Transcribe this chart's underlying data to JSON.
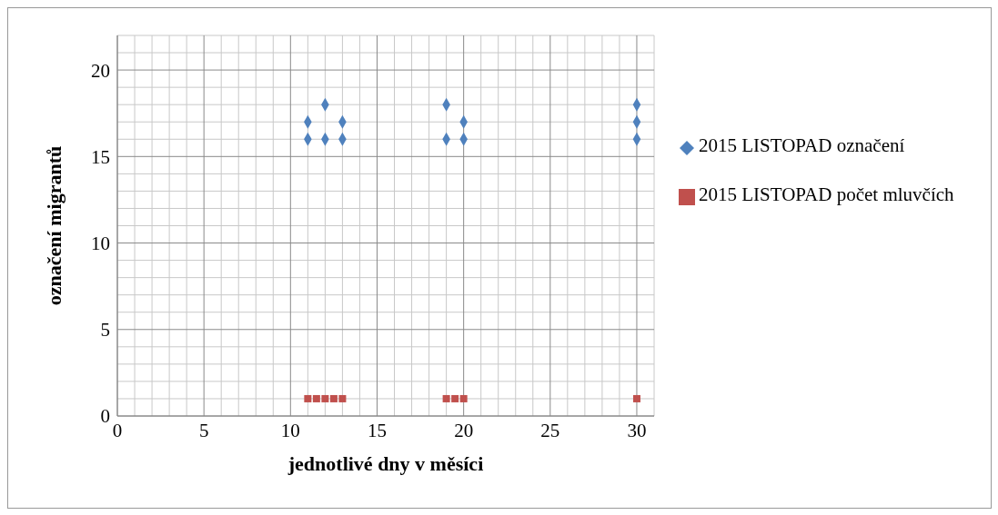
{
  "chart_data": {
    "type": "scatter",
    "xlabel": "jednotlivé dny v měsíci",
    "ylabel": "označení migrantů",
    "xlim": [
      0,
      31
    ],
    "ylim": [
      0,
      22
    ],
    "xticks": [
      0,
      5,
      10,
      15,
      20,
      25,
      30
    ],
    "yticks": [
      0,
      5,
      10,
      15,
      20
    ],
    "grid": true,
    "legend": "right",
    "series": [
      {
        "name": "2015 LISTOPAD označení",
        "color": "#4f81bd",
        "marker": "diamond",
        "x": [
          11,
          11,
          12,
          12,
          13,
          13,
          19,
          19,
          20,
          20,
          30,
          30,
          30
        ],
        "values": [
          16,
          17,
          16,
          18,
          16,
          17,
          16,
          18,
          16,
          17,
          16,
          17,
          18
        ]
      },
      {
        "name": "2015 LISTOPAD počet mluvčích",
        "color": "#c0504d",
        "marker": "square",
        "x": [
          11,
          11.5,
          12,
          12.5,
          13,
          19,
          19.5,
          20,
          30
        ],
        "values": [
          1,
          1,
          1,
          1,
          1,
          1,
          1,
          1,
          1
        ]
      }
    ]
  }
}
